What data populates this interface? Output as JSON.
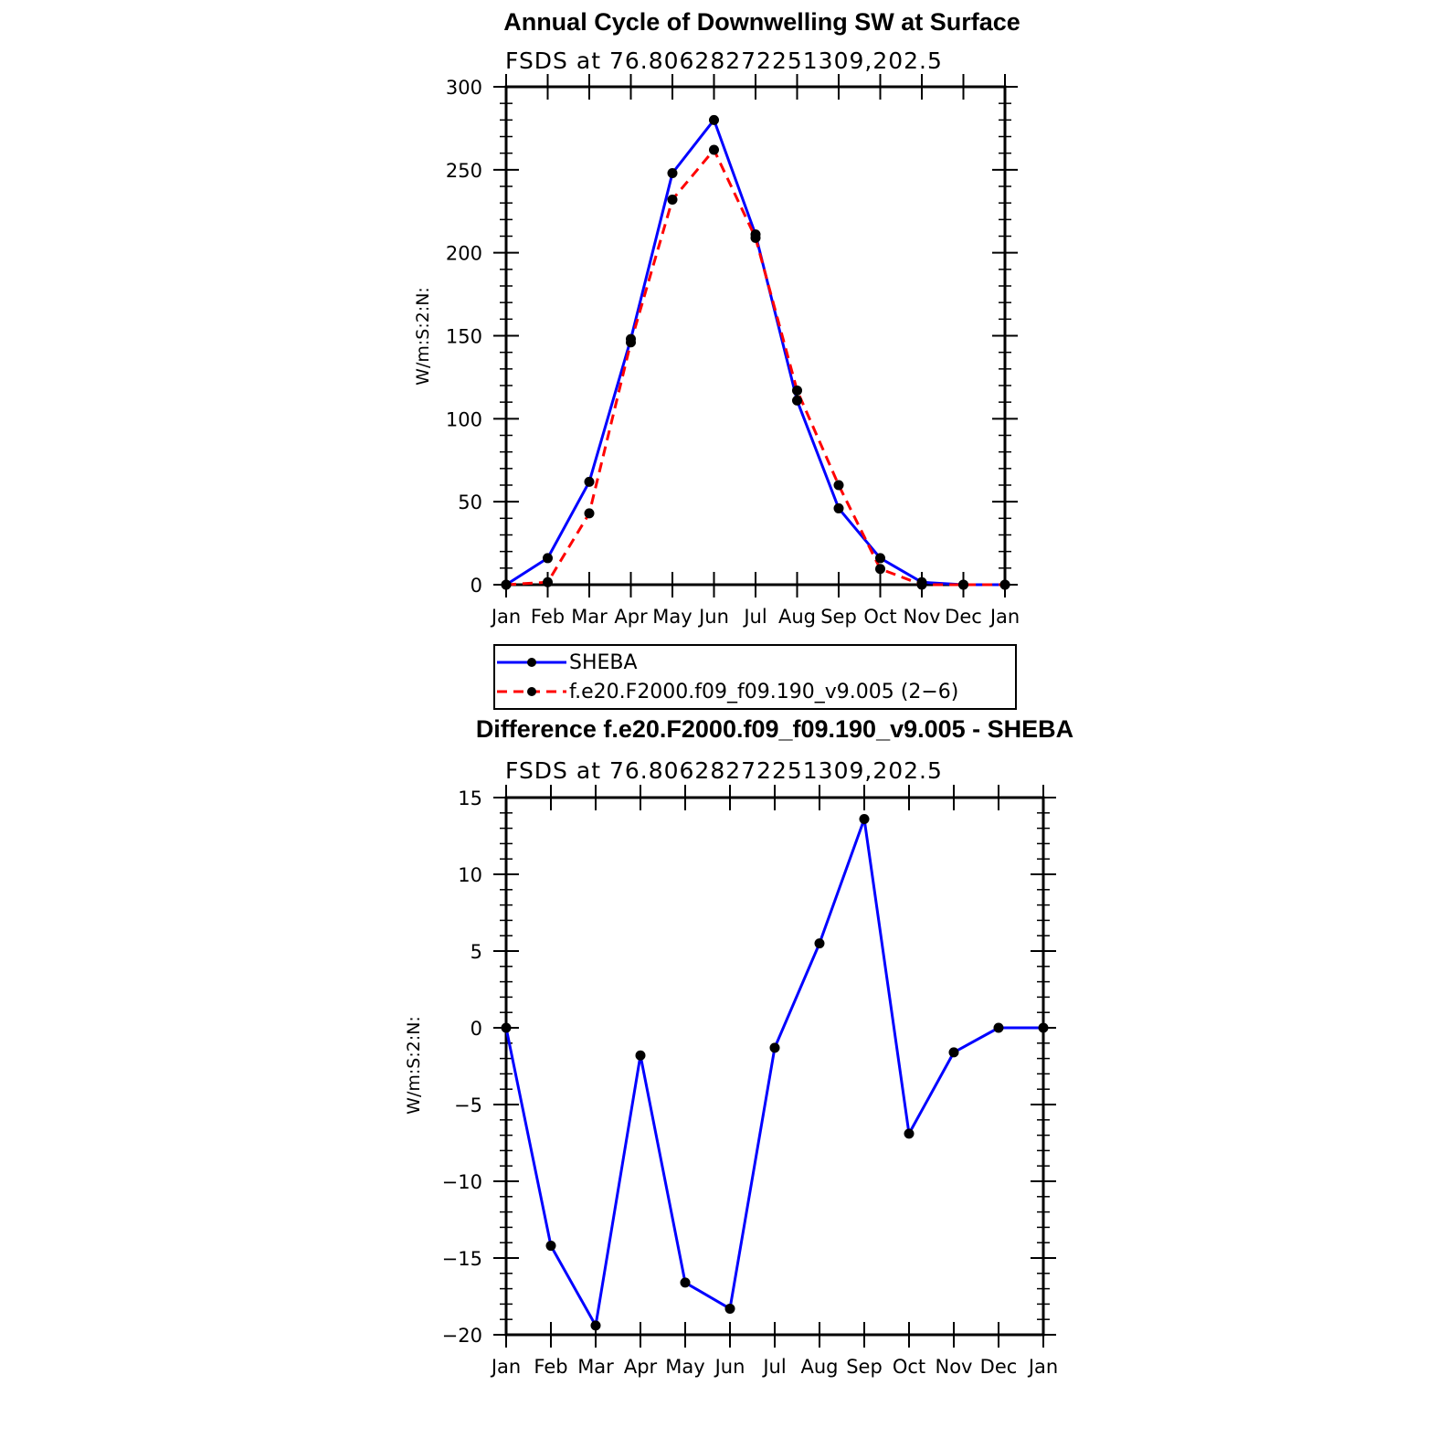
{
  "chart_data": [
    {
      "type": "line",
      "title": "Annual Cycle of Downwelling SW at Surface",
      "subtitle": "FSDS at 76.80628272251309,202.5",
      "ylabel": "W/m:S:2:N:",
      "xlabel": "",
      "categories": [
        "Jan",
        "Feb",
        "Mar",
        "Apr",
        "May",
        "Jun",
        "Jul",
        "Aug",
        "Sep",
        "Oct",
        "Nov",
        "Dec",
        "Jan"
      ],
      "ylim": [
        0,
        300
      ],
      "yticks": [
        "0",
        "50",
        "100",
        "150",
        "200",
        "250",
        "300"
      ],
      "yticks_values": [
        0,
        50,
        100,
        150,
        200,
        250,
        300
      ],
      "grid": false,
      "legend": {
        "placement": "below",
        "entries": [
          "SHEBA",
          "f.e20.F2000.f09_f09.190_v9.005 (2−6)"
        ]
      },
      "series": [
        {
          "name": "SHEBA",
          "color": "#0000ff",
          "dash": "solid",
          "values": [
            0,
            16,
            62,
            148,
            248,
            280,
            211,
            111,
            46,
            16,
            1.5,
            0,
            0
          ]
        },
        {
          "name": "f.e20.F2000.f09_f09.190_v9.005 (2−6)",
          "color": "#ff0000",
          "dash": "dashed",
          "values": [
            0,
            1.5,
            43,
            146,
            232,
            262,
            209,
            117,
            60,
            9.5,
            0,
            0,
            0
          ]
        }
      ]
    },
    {
      "type": "line",
      "title": "Difference f.e20.F2000.f09_f09.190_v9.005 - SHEBA",
      "subtitle": "FSDS at 76.80628272251309,202.5",
      "ylabel": "W/m:S:2:N:",
      "xlabel": "",
      "categories": [
        "Jan",
        "Feb",
        "Mar",
        "Apr",
        "May",
        "Jun",
        "Jul",
        "Aug",
        "Sep",
        "Oct",
        "Nov",
        "Dec",
        "Jan"
      ],
      "ylim": [
        -20,
        15
      ],
      "yticks": [
        "−20",
        "−15",
        "−10",
        "−5",
        "0",
        "5",
        "10",
        "15"
      ],
      "yticks_values": [
        -20,
        -15,
        -10,
        -5,
        0,
        5,
        10,
        15
      ],
      "grid": false,
      "series": [
        {
          "color": "#0000ff",
          "dash": "solid",
          "values": [
            0,
            -14.2,
            -19.4,
            -1.8,
            -16.6,
            -18.3,
            -1.3,
            5.5,
            13.6,
            -6.9,
            -1.6,
            0,
            0
          ]
        }
      ]
    }
  ]
}
